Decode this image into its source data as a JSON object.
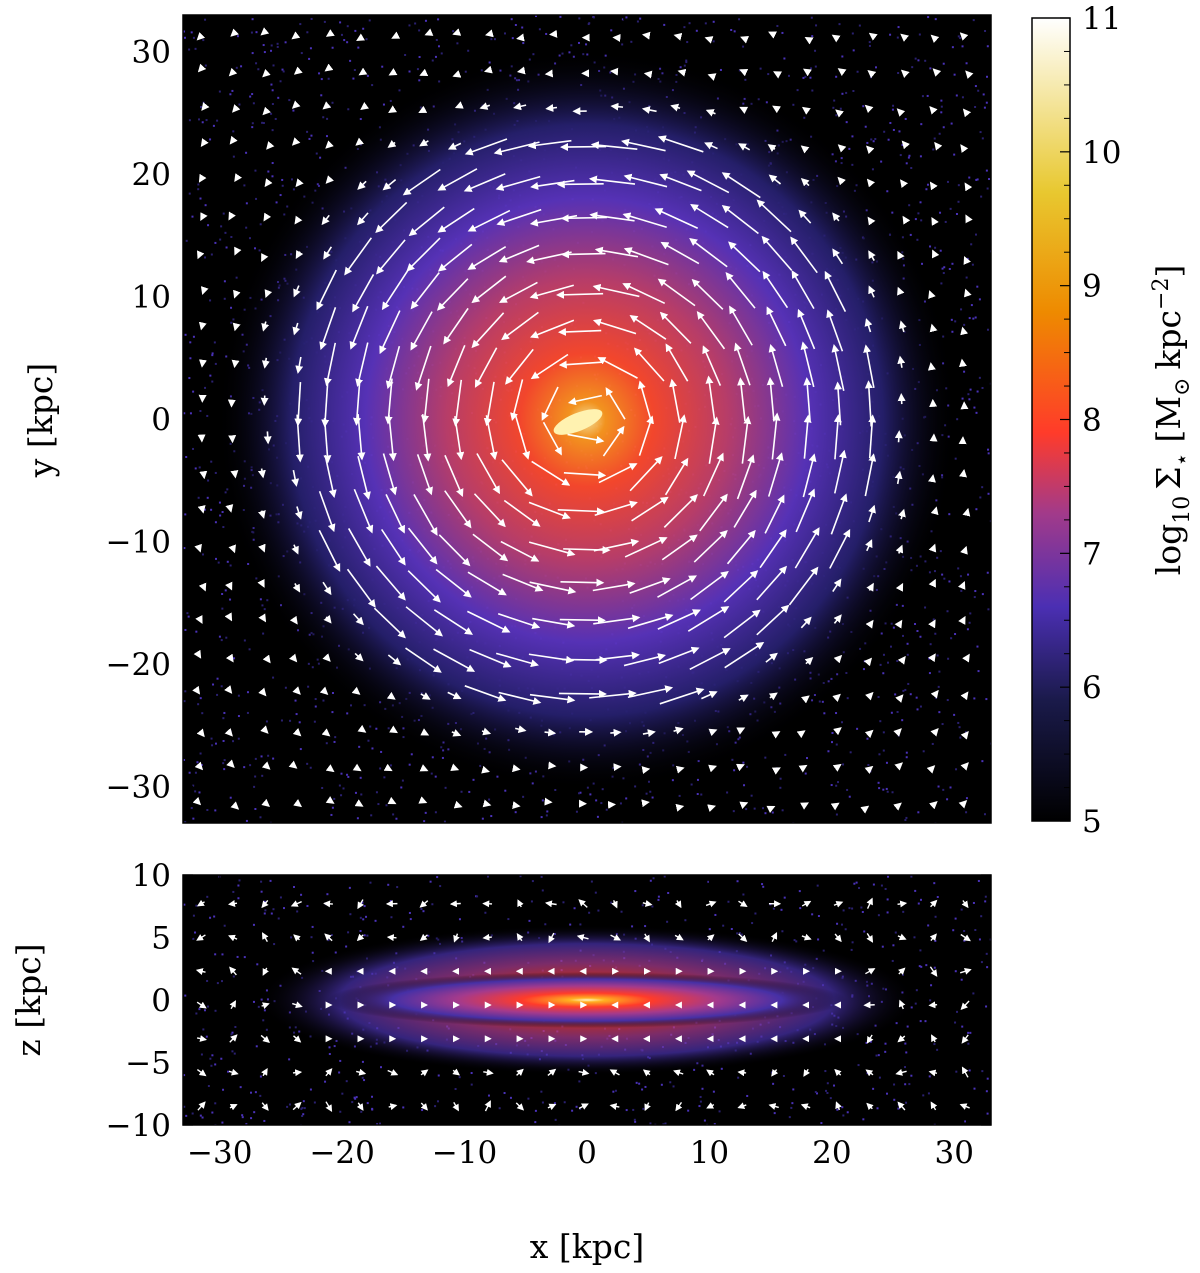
{
  "chart_data": [
    {
      "type": "heatmap",
      "panel": "face-on",
      "xlim": [
        -33,
        33
      ],
      "ylim": [
        -33,
        33
      ],
      "xlabel": "",
      "ylabel": "y [kpc]",
      "xticks": [
        -30,
        -20,
        -10,
        0,
        10,
        20,
        30
      ],
      "yticks": [
        30,
        20,
        10,
        0,
        -10,
        -20,
        -30
      ],
      "ytick_labels": [
        "30",
        "20",
        "10",
        "0",
        "−10",
        "−20",
        "−30"
      ],
      "overlay": "velocity-vector-field",
      "rotation": "counter-clockwise",
      "peak_log_density_at": [
        0,
        0
      ]
    },
    {
      "type": "heatmap",
      "panel": "edge-on",
      "xlim": [
        -33,
        33
      ],
      "ylim": [
        -10,
        10
      ],
      "xlabel": "x [kpc]",
      "ylabel": "z [kpc]",
      "xticks": [
        -30,
        -20,
        -10,
        0,
        10,
        20,
        30
      ],
      "xtick_labels": [
        "−30",
        "−20",
        "−10",
        "0",
        "10",
        "20",
        "30"
      ],
      "yticks": [
        10,
        5,
        0,
        -5,
        -10
      ],
      "ytick_labels": [
        "10",
        "5",
        "0",
        "−5",
        "−10"
      ],
      "overlay": "velocity-vector-field"
    }
  ],
  "colorbar": {
    "label_main": "log",
    "label_sub": "10",
    "label_sym": "Σ",
    "label_star": "⋆",
    "label_units_open": "[M",
    "label_sun": "⊙",
    "label_units_mid": "kpc",
    "label_exp": "−2",
    "label_units_close": "]",
    "range": [
      5,
      11
    ],
    "ticks": [
      11,
      10,
      9,
      8,
      7,
      6,
      5
    ],
    "tick_labels": [
      "11",
      "10",
      "9",
      "8",
      "7",
      "6",
      "5"
    ],
    "colormap": "CMRmap",
    "stops": [
      {
        "v": 5.0,
        "color": "#000000"
      },
      {
        "v": 5.9,
        "color": "#1a1a4a"
      },
      {
        "v": 6.6,
        "color": "#4b2fb3"
      },
      {
        "v": 7.3,
        "color": "#a23a8a"
      },
      {
        "v": 7.9,
        "color": "#ff3b2a"
      },
      {
        "v": 8.8,
        "color": "#ee8a00"
      },
      {
        "v": 9.7,
        "color": "#e8c830"
      },
      {
        "v": 11.0,
        "color": "#ffffff"
      }
    ]
  }
}
